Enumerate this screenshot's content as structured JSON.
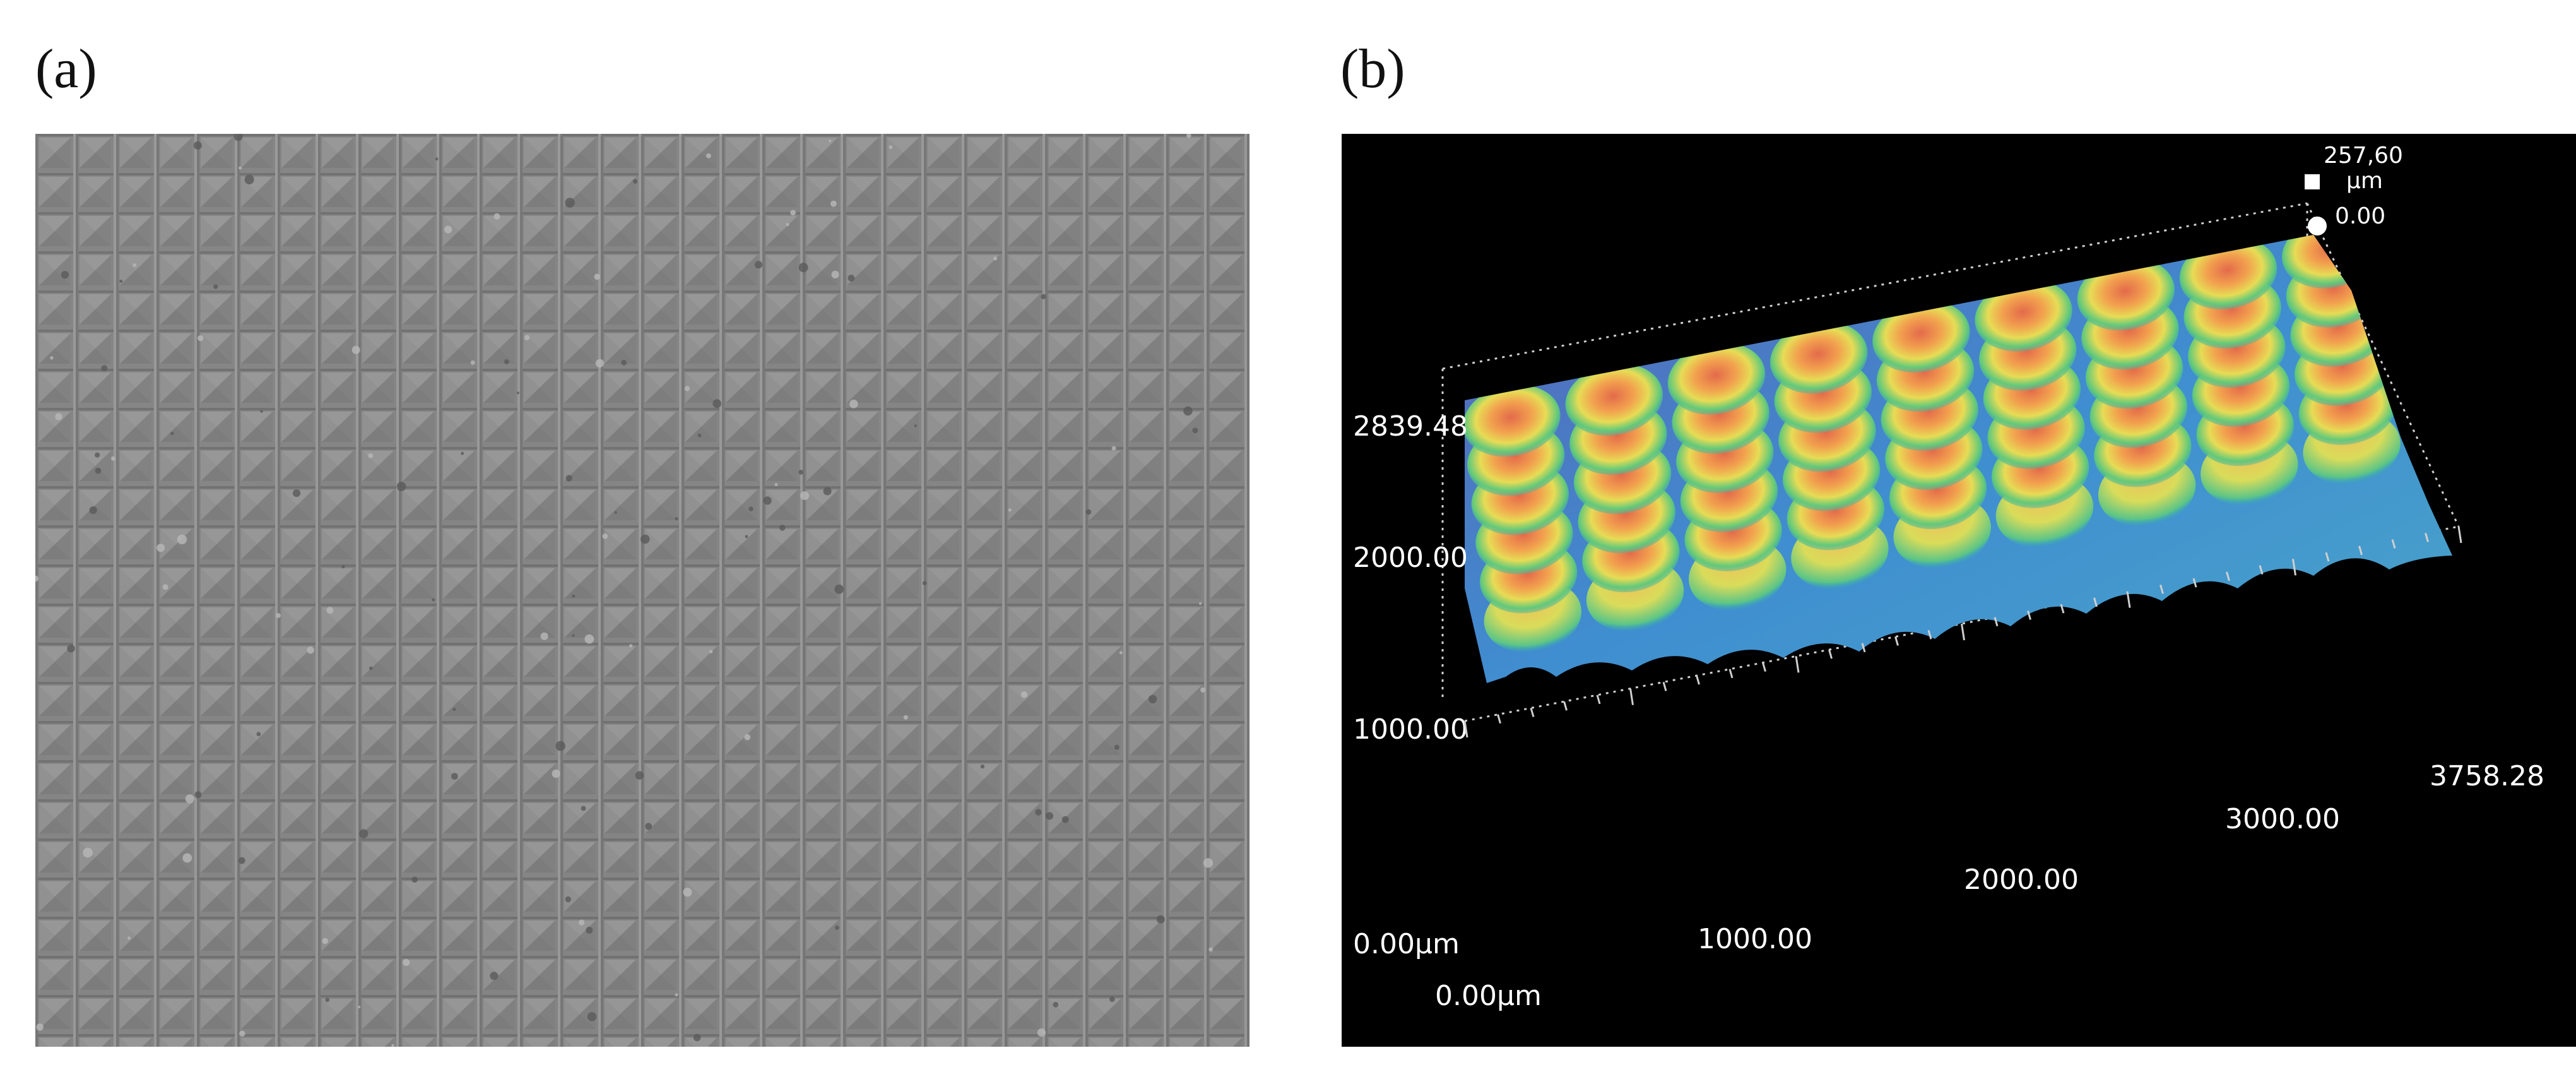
{
  "figure": {
    "panel_a": {
      "label": "(a)"
    },
    "panel_b": {
      "label": "(b)",
      "legend": {
        "max_value": "257,60",
        "unit": "µm",
        "min_value": "0.00"
      },
      "y_axis_ticks": [
        "2839.48",
        "2000.00",
        "1000.00"
      ],
      "x_axis_ticks": [
        "1000.00",
        "2000.00",
        "3000.00",
        "3758.28"
      ],
      "origin_labels": [
        "0.00µm",
        "0.00µm"
      ],
      "colormap": [
        "#3a2f8c",
        "#3d6fc7",
        "#2fb5b4",
        "#7fd36a",
        "#f0e04a",
        "#f2a94c",
        "#e0624a"
      ]
    }
  }
}
